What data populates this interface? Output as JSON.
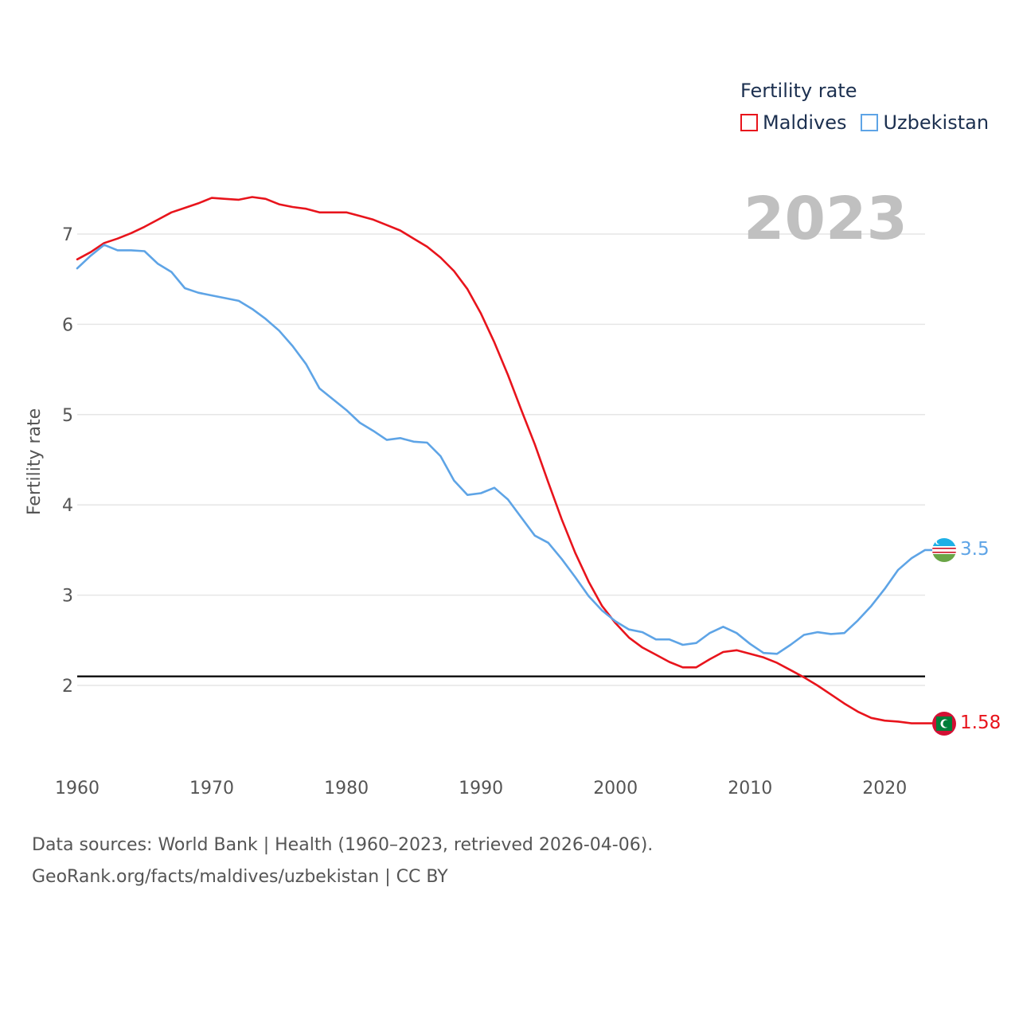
{
  "legend": {
    "title": "Fertility rate",
    "items": [
      {
        "name": "Maldives",
        "color": "#e8141c"
      },
      {
        "name": "Uzbekistan",
        "color": "#5ea4e6"
      }
    ]
  },
  "year_display": "2023",
  "end_labels": {
    "maldives": "1.58",
    "uzbekistan": "3.5"
  },
  "footer": {
    "line1": "Data sources: World Bank | Health (1960–2023, retrieved 2026-04-06).",
    "line2": "GeoRank.org/facts/maldives/uzbekistan | CC BY"
  },
  "chart_data": {
    "type": "line",
    "title": "",
    "xlabel": "",
    "ylabel": "Fertility rate",
    "xlim": [
      1960,
      2023
    ],
    "ylim": [
      1.1,
      7.6
    ],
    "xticks": [
      1960,
      1970,
      1980,
      1990,
      2000,
      2010,
      2020
    ],
    "yticks": [
      2,
      3,
      4,
      5,
      6,
      7
    ],
    "reference_line": {
      "value": 2.1,
      "color": "#000000"
    },
    "x": [
      1960,
      1961,
      1962,
      1963,
      1964,
      1965,
      1966,
      1967,
      1968,
      1969,
      1970,
      1971,
      1972,
      1973,
      1974,
      1975,
      1976,
      1977,
      1978,
      1979,
      1980,
      1981,
      1982,
      1983,
      1984,
      1985,
      1986,
      1987,
      1988,
      1989,
      1990,
      1991,
      1992,
      1993,
      1994,
      1995,
      1996,
      1997,
      1998,
      1999,
      2000,
      2001,
      2002,
      2003,
      2004,
      2005,
      2006,
      2007,
      2008,
      2009,
      2010,
      2011,
      2012,
      2013,
      2014,
      2015,
      2016,
      2017,
      2018,
      2019,
      2020,
      2021,
      2022,
      2023
    ],
    "series": [
      {
        "name": "Maldives",
        "color": "#e8141c",
        "values": [
          6.72,
          6.8,
          6.9,
          6.95,
          7.01,
          7.08,
          7.16,
          7.24,
          7.29,
          7.34,
          7.4,
          7.39,
          7.38,
          7.41,
          7.39,
          7.33,
          7.3,
          7.28,
          7.24,
          7.24,
          7.24,
          7.2,
          7.16,
          7.1,
          7.04,
          6.95,
          6.86,
          6.74,
          6.59,
          6.39,
          6.12,
          5.8,
          5.44,
          5.05,
          4.67,
          4.25,
          3.84,
          3.47,
          3.15,
          2.88,
          2.69,
          2.53,
          2.42,
          2.34,
          2.26,
          2.2,
          2.2,
          2.29,
          2.37,
          2.39,
          2.35,
          2.31,
          2.25,
          2.17,
          2.09,
          2.0,
          1.9,
          1.8,
          1.71,
          1.64,
          1.61,
          1.6,
          1.58,
          1.58
        ]
      },
      {
        "name": "Uzbekistan",
        "color": "#5ea4e6",
        "values": [
          6.62,
          6.76,
          6.88,
          6.82,
          6.82,
          6.81,
          6.67,
          6.58,
          6.4,
          6.35,
          6.32,
          6.29,
          6.26,
          6.17,
          6.06,
          5.93,
          5.76,
          5.56,
          5.29,
          5.17,
          5.05,
          4.91,
          4.82,
          4.72,
          4.74,
          4.7,
          4.69,
          4.54,
          4.27,
          4.11,
          4.13,
          4.19,
          4.06,
          3.86,
          3.66,
          3.58,
          3.4,
          3.2,
          2.99,
          2.83,
          2.71,
          2.62,
          2.59,
          2.51,
          2.51,
          2.45,
          2.47,
          2.58,
          2.65,
          2.58,
          2.46,
          2.36,
          2.35,
          2.45,
          2.56,
          2.59,
          2.57,
          2.58,
          2.72,
          2.88,
          3.07,
          3.28,
          3.41,
          3.5
        ]
      }
    ]
  }
}
